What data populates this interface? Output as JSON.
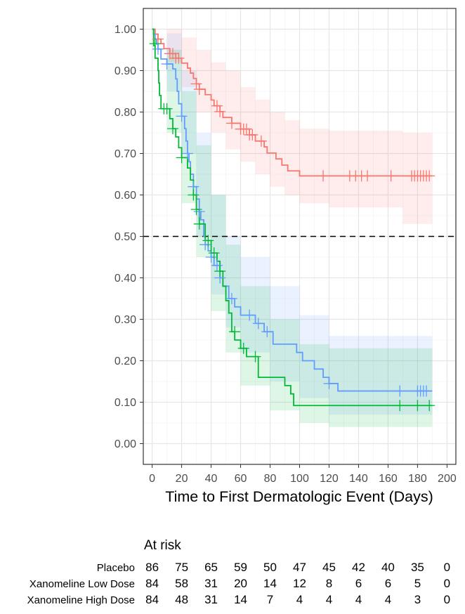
{
  "chart_data": {
    "type": "step",
    "title": "",
    "xlabel": "Time to First Dermatologic Event (Days)",
    "ylabel": "",
    "xlim": [
      -6,
      206
    ],
    "ylim": [
      -0.05,
      1.05
    ],
    "x_ticks": [
      0,
      20,
      40,
      60,
      80,
      100,
      120,
      140,
      160,
      180,
      200
    ],
    "x_tick_labels": [
      "0",
      "20",
      "40",
      "60",
      "80",
      "100",
      "120",
      "140",
      "160",
      "180",
      "200"
    ],
    "y_ticks": [
      0,
      0.1,
      0.2,
      0.3,
      0.4,
      0.5,
      0.6,
      0.7,
      0.8,
      0.9,
      1.0
    ],
    "y_tick_labels": [
      "0.00",
      "0.10",
      "0.20",
      "0.30",
      "0.40",
      "0.50",
      "0.60",
      "0.70",
      "0.80",
      "0.90",
      "1.00"
    ],
    "grid": true,
    "reference_line": {
      "y": 0.5,
      "style": "dashed"
    },
    "series": [
      {
        "name": "Placebo",
        "color": "#f8766d",
        "steps": [
          [
            0,
            1.0
          ],
          [
            2,
            0.988
          ],
          [
            4,
            0.976
          ],
          [
            6,
            0.965
          ],
          [
            8,
            0.953
          ],
          [
            12,
            0.941
          ],
          [
            16,
            0.93
          ],
          [
            20,
            0.918
          ],
          [
            24,
            0.906
          ],
          [
            26,
            0.894
          ],
          [
            28,
            0.881
          ],
          [
            30,
            0.868
          ],
          [
            32,
            0.855
          ],
          [
            36,
            0.842
          ],
          [
            40,
            0.829
          ],
          [
            42,
            0.815
          ],
          [
            46,
            0.801
          ],
          [
            48,
            0.787
          ],
          [
            54,
            0.773
          ],
          [
            60,
            0.759
          ],
          [
            66,
            0.745
          ],
          [
            70,
            0.73
          ],
          [
            76,
            0.716
          ],
          [
            78,
            0.701
          ],
          [
            84,
            0.687
          ],
          [
            88,
            0.672
          ],
          [
            92,
            0.658
          ],
          [
            100,
            0.646
          ],
          [
            190,
            0.646
          ]
        ],
        "ci_upper": [
          [
            0,
            1.0
          ],
          [
            10,
            1.0
          ],
          [
            20,
            0.98
          ],
          [
            30,
            0.95
          ],
          [
            40,
            0.92
          ],
          [
            50,
            0.9
          ],
          [
            60,
            0.86
          ],
          [
            70,
            0.83
          ],
          [
            80,
            0.8
          ],
          [
            90,
            0.78
          ],
          [
            100,
            0.76
          ],
          [
            120,
            0.755
          ],
          [
            170,
            0.75
          ],
          [
            190,
            0.745
          ]
        ],
        "ci_lower": [
          [
            0,
            1.0
          ],
          [
            10,
            0.92
          ],
          [
            20,
            0.86
          ],
          [
            30,
            0.8
          ],
          [
            40,
            0.75
          ],
          [
            50,
            0.71
          ],
          [
            60,
            0.68
          ],
          [
            70,
            0.65
          ],
          [
            80,
            0.62
          ],
          [
            90,
            0.6
          ],
          [
            100,
            0.58
          ],
          [
            120,
            0.57
          ],
          [
            170,
            0.53
          ],
          [
            190,
            0.525
          ]
        ],
        "censored": [
          [
            4,
            0.976
          ],
          [
            12,
            0.941
          ],
          [
            14,
            0.941
          ],
          [
            16,
            0.93
          ],
          [
            18,
            0.93
          ],
          [
            30,
            0.868
          ],
          [
            32,
            0.855
          ],
          [
            44,
            0.815
          ],
          [
            46,
            0.801
          ],
          [
            54,
            0.773
          ],
          [
            60,
            0.759
          ],
          [
            62,
            0.759
          ],
          [
            64,
            0.759
          ],
          [
            66,
            0.745
          ],
          [
            68,
            0.745
          ],
          [
            74,
            0.73
          ],
          [
            116,
            0.646
          ],
          [
            134,
            0.646
          ],
          [
            138,
            0.646
          ],
          [
            142,
            0.646
          ],
          [
            146,
            0.646
          ],
          [
            162,
            0.646
          ],
          [
            176,
            0.646
          ],
          [
            178,
            0.646
          ],
          [
            180,
            0.646
          ],
          [
            182,
            0.646
          ],
          [
            184,
            0.646
          ],
          [
            186,
            0.646
          ],
          [
            188,
            0.646
          ]
        ]
      },
      {
        "name": "Xanomeline Low Dose",
        "color": "#619cff",
        "steps": [
          [
            0,
            1.0
          ],
          [
            1,
            0.988
          ],
          [
            2,
            0.976
          ],
          [
            3,
            0.964
          ],
          [
            4,
            0.952
          ],
          [
            6,
            0.928
          ],
          [
            10,
            0.916
          ],
          [
            14,
            0.904
          ],
          [
            16,
            0.88
          ],
          [
            17,
            0.85
          ],
          [
            18,
            0.82
          ],
          [
            20,
            0.79
          ],
          [
            22,
            0.76
          ],
          [
            23,
            0.73
          ],
          [
            24,
            0.7
          ],
          [
            25,
            0.68
          ],
          [
            26,
            0.65
          ],
          [
            28,
            0.62
          ],
          [
            30,
            0.59
          ],
          [
            32,
            0.56
          ],
          [
            33,
            0.54
          ],
          [
            35,
            0.5
          ],
          [
            36,
            0.48
          ],
          [
            38,
            0.465
          ],
          [
            40,
            0.45
          ],
          [
            42,
            0.43
          ],
          [
            46,
            0.4
          ],
          [
            48,
            0.38
          ],
          [
            52,
            0.35
          ],
          [
            56,
            0.33
          ],
          [
            60,
            0.31
          ],
          [
            70,
            0.29
          ],
          [
            76,
            0.27
          ],
          [
            82,
            0.24
          ],
          [
            98,
            0.22
          ],
          [
            102,
            0.2
          ],
          [
            110,
            0.18
          ],
          [
            116,
            0.16
          ],
          [
            120,
            0.145
          ],
          [
            126,
            0.127
          ],
          [
            190,
            0.127
          ]
        ],
        "ci_upper": [
          [
            0,
            1.0
          ],
          [
            10,
            0.99
          ],
          [
            20,
            0.9
          ],
          [
            30,
            0.75
          ],
          [
            40,
            0.6
          ],
          [
            50,
            0.5
          ],
          [
            60,
            0.45
          ],
          [
            80,
            0.38
          ],
          [
            100,
            0.31
          ],
          [
            120,
            0.26
          ],
          [
            190,
            0.255
          ]
        ],
        "ci_lower": [
          [
            0,
            1.0
          ],
          [
            10,
            0.85
          ],
          [
            20,
            0.7
          ],
          [
            30,
            0.5
          ],
          [
            40,
            0.36
          ],
          [
            50,
            0.28
          ],
          [
            60,
            0.22
          ],
          [
            80,
            0.15
          ],
          [
            100,
            0.11
          ],
          [
            120,
            0.07
          ],
          [
            190,
            0.065
          ]
        ],
        "censored": [
          [
            4,
            0.952
          ],
          [
            10,
            0.916
          ],
          [
            20,
            0.79
          ],
          [
            24,
            0.7
          ],
          [
            28,
            0.62
          ],
          [
            32,
            0.56
          ],
          [
            36,
            0.48
          ],
          [
            40,
            0.45
          ],
          [
            44,
            0.43
          ],
          [
            46,
            0.4
          ],
          [
            54,
            0.35
          ],
          [
            66,
            0.31
          ],
          [
            72,
            0.29
          ],
          [
            78,
            0.27
          ],
          [
            120,
            0.145
          ],
          [
            168,
            0.127
          ],
          [
            180,
            0.127
          ],
          [
            182,
            0.127
          ],
          [
            184,
            0.127
          ],
          [
            186,
            0.127
          ]
        ]
      },
      {
        "name": "Xanomeline High Dose",
        "color": "#00ba38",
        "steps": [
          [
            0,
            1.0
          ],
          [
            1,
            0.96
          ],
          [
            2,
            0.93
          ],
          [
            4,
            0.9
          ],
          [
            4.5,
            0.87
          ],
          [
            5,
            0.84
          ],
          [
            6,
            0.808
          ],
          [
            12,
            0.784
          ],
          [
            14,
            0.76
          ],
          [
            16,
            0.74
          ],
          [
            18,
            0.714
          ],
          [
            20,
            0.69
          ],
          [
            24,
            0.665
          ],
          [
            26,
            0.636
          ],
          [
            28,
            0.6
          ],
          [
            30,
            0.565
          ],
          [
            32,
            0.53
          ],
          [
            36,
            0.49
          ],
          [
            40,
            0.46
          ],
          [
            44,
            0.44
          ],
          [
            46,
            0.416
          ],
          [
            48,
            0.38
          ],
          [
            50,
            0.345
          ],
          [
            52,
            0.315
          ],
          [
            54,
            0.27
          ],
          [
            56,
            0.25
          ],
          [
            60,
            0.23
          ],
          [
            64,
            0.21
          ],
          [
            72,
            0.16
          ],
          [
            90,
            0.14
          ],
          [
            94,
            0.12
          ],
          [
            96,
            0.092
          ],
          [
            190,
            0.092
          ]
        ],
        "ci_upper": [
          [
            0,
            1.0
          ],
          [
            10,
            0.95
          ],
          [
            20,
            0.85
          ],
          [
            30,
            0.72
          ],
          [
            40,
            0.6
          ],
          [
            50,
            0.48
          ],
          [
            60,
            0.38
          ],
          [
            80,
            0.3
          ],
          [
            100,
            0.24
          ],
          [
            120,
            0.23
          ],
          [
            190,
            0.225
          ]
        ],
        "ci_lower": [
          [
            0,
            1.0
          ],
          [
            10,
            0.75
          ],
          [
            20,
            0.58
          ],
          [
            30,
            0.45
          ],
          [
            40,
            0.32
          ],
          [
            50,
            0.22
          ],
          [
            60,
            0.14
          ],
          [
            80,
            0.08
          ],
          [
            100,
            0.05
          ],
          [
            120,
            0.04
          ],
          [
            190,
            0.038
          ]
        ],
        "censored": [
          [
            2,
            0.965
          ],
          [
            8,
            0.808
          ],
          [
            10,
            0.808
          ],
          [
            14,
            0.76
          ],
          [
            20,
            0.69
          ],
          [
            28,
            0.6
          ],
          [
            30,
            0.565
          ],
          [
            32,
            0.53
          ],
          [
            38,
            0.49
          ],
          [
            42,
            0.46
          ],
          [
            46,
            0.416
          ],
          [
            56,
            0.27
          ],
          [
            62,
            0.23
          ],
          [
            70,
            0.21
          ],
          [
            168,
            0.092
          ],
          [
            180,
            0.092
          ],
          [
            188,
            0.092
          ]
        ]
      }
    ],
    "risk_table": {
      "title": "At risk",
      "time_points": [
        0,
        20,
        40,
        60,
        80,
        100,
        120,
        140,
        160,
        180,
        200
      ],
      "rows": [
        {
          "group": "Placebo",
          "counts": [
            "86",
            "75",
            "65",
            "59",
            "50",
            "47",
            "45",
            "42",
            "40",
            "35",
            "0"
          ]
        },
        {
          "group": "Xanomeline Low Dose",
          "counts": [
            "84",
            "58",
            "31",
            "20",
            "14",
            "12",
            "8",
            "6",
            "6",
            "5",
            "0"
          ]
        },
        {
          "group": "Xanomeline High Dose",
          "counts": [
            "84",
            "48",
            "31",
            "14",
            "7",
            "4",
            "4",
            "4",
            "4",
            "3",
            "0"
          ]
        }
      ]
    }
  }
}
